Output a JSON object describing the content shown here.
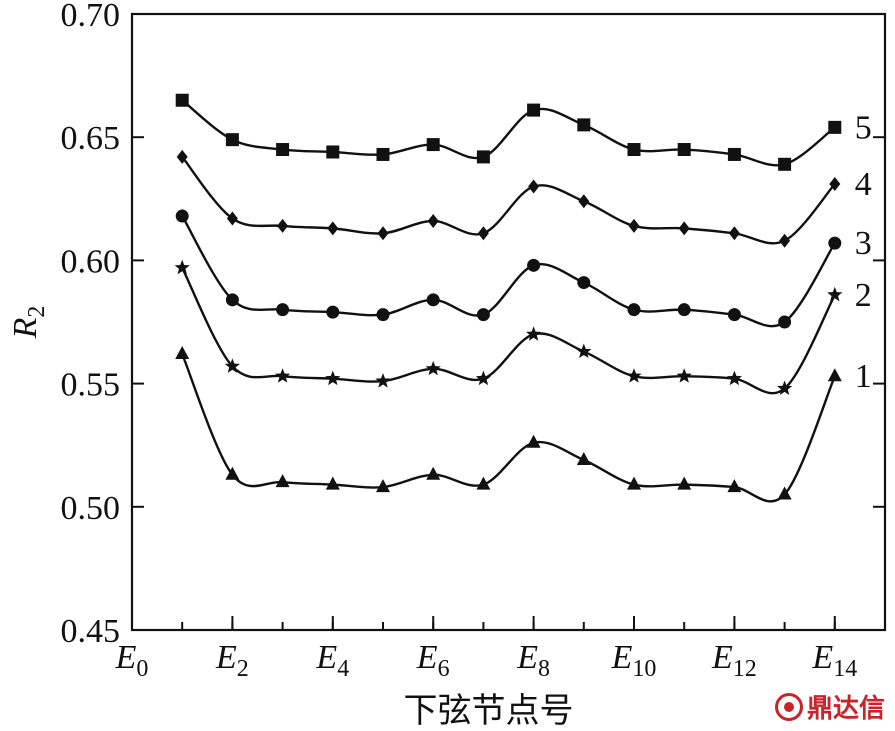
{
  "chart_data": {
    "type": "line",
    "title": "",
    "xlabel": "下弦节点号",
    "ylabel": {
      "base": "R",
      "sub": "2"
    },
    "xlim": [
      0,
      15
    ],
    "ylim": [
      0.45,
      0.7
    ],
    "yticks": [
      "0.45",
      "0.50",
      "0.55",
      "0.60",
      "0.65",
      "0.70"
    ],
    "xticks": [
      {
        "pos": 0,
        "base": "E",
        "sub": "0"
      },
      {
        "pos": 2,
        "base": "E",
        "sub": "2"
      },
      {
        "pos": 4,
        "base": "E",
        "sub": "4"
      },
      {
        "pos": 6,
        "base": "E",
        "sub": "6"
      },
      {
        "pos": 8,
        "base": "E",
        "sub": "8"
      },
      {
        "pos": 10,
        "base": "E",
        "sub": "10"
      },
      {
        "pos": 12,
        "base": "E",
        "sub": "12"
      },
      {
        "pos": 14,
        "base": "E",
        "sub": "14"
      }
    ],
    "x": [
      1,
      2,
      3,
      4,
      5,
      6,
      7,
      8,
      9,
      10,
      11,
      12,
      13,
      14
    ],
    "series": [
      {
        "name": "1",
        "marker": "triangle",
        "values": [
          0.562,
          0.513,
          0.51,
          0.509,
          0.508,
          0.513,
          0.509,
          0.526,
          0.519,
          0.509,
          0.509,
          0.508,
          0.505,
          0.553
        ]
      },
      {
        "name": "2",
        "marker": "star",
        "values": [
          0.597,
          0.557,
          0.553,
          0.552,
          0.551,
          0.556,
          0.552,
          0.57,
          0.563,
          0.553,
          0.553,
          0.552,
          0.548,
          0.586
        ]
      },
      {
        "name": "3",
        "marker": "circle",
        "values": [
          0.618,
          0.584,
          0.58,
          0.579,
          0.578,
          0.584,
          0.578,
          0.598,
          0.591,
          0.58,
          0.58,
          0.578,
          0.575,
          0.607
        ]
      },
      {
        "name": "4",
        "marker": "diamond",
        "values": [
          0.642,
          0.617,
          0.614,
          0.613,
          0.611,
          0.616,
          0.611,
          0.63,
          0.624,
          0.614,
          0.613,
          0.611,
          0.608,
          0.631
        ]
      },
      {
        "name": "5",
        "marker": "square",
        "values": [
          0.665,
          0.649,
          0.645,
          0.644,
          0.643,
          0.647,
          0.642,
          0.661,
          0.655,
          0.645,
          0.645,
          0.643,
          0.639,
          0.654
        ]
      }
    ],
    "grid": false,
    "legend": "end-of-line labels"
  },
  "watermark": {
    "text": "鼎达信"
  }
}
